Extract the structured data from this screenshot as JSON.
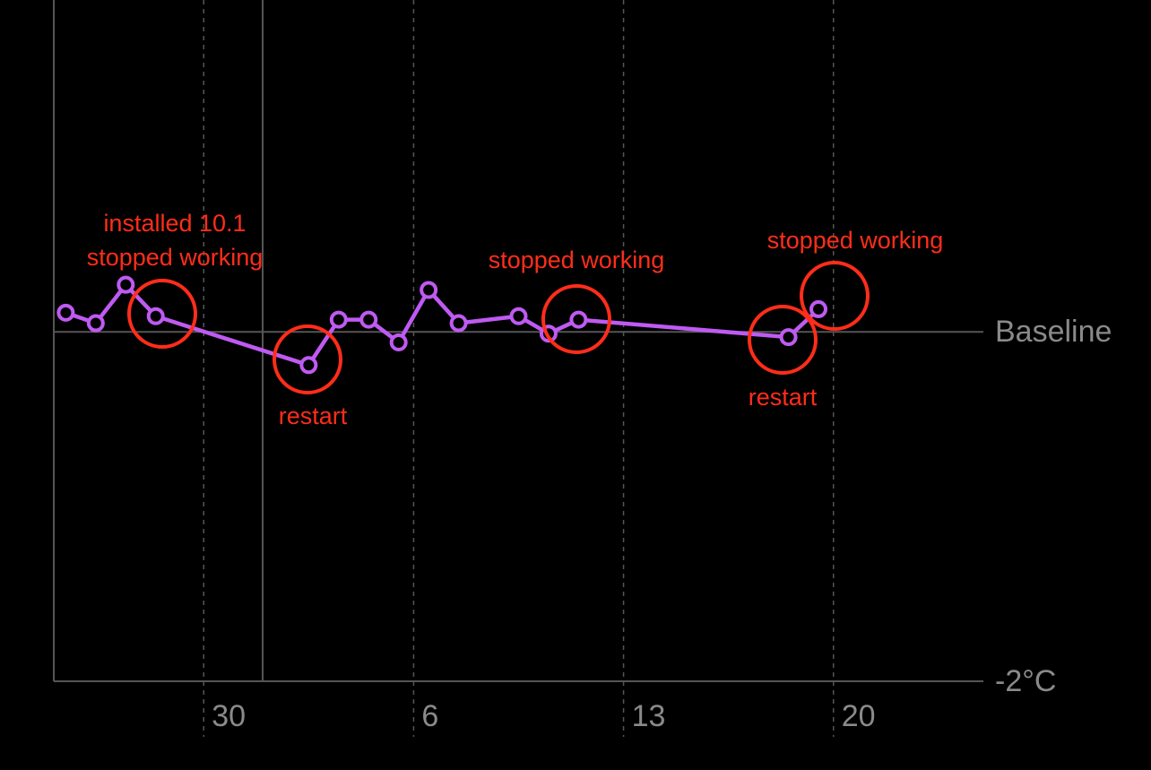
{
  "chart_data": {
    "type": "line",
    "x": [
      25.4,
      26.4,
      27.4,
      28.4,
      33.5,
      34.5,
      35.5,
      36.5,
      37.5,
      38.5,
      40.5,
      41.5,
      42.5,
      49.5,
      50.5
    ],
    "values": [
      0.11,
      0.05,
      0.27,
      0.09,
      -0.19,
      0.07,
      0.07,
      -0.06,
      0.24,
      0.05,
      0.09,
      -0.01,
      0.07,
      -0.03,
      0.13
    ],
    "color": "#bf5af2",
    "xlim": [
      25,
      56
    ],
    "xticks": [
      {
        "value": 30,
        "label": "30"
      },
      {
        "value": 37,
        "label": "6"
      },
      {
        "value": 44,
        "label": "13"
      },
      {
        "value": 51,
        "label": "20"
      }
    ],
    "ylim": [
      -2,
      1.9
    ],
    "yticks": [
      {
        "value": 0,
        "label": "Baseline"
      },
      {
        "value": -2,
        "label": "-2°C"
      }
    ],
    "grid": true,
    "annotations": [
      "installed 10.1",
      "stopped working",
      "restart",
      "stopped working",
      "stopped working",
      "restart"
    ]
  }
}
